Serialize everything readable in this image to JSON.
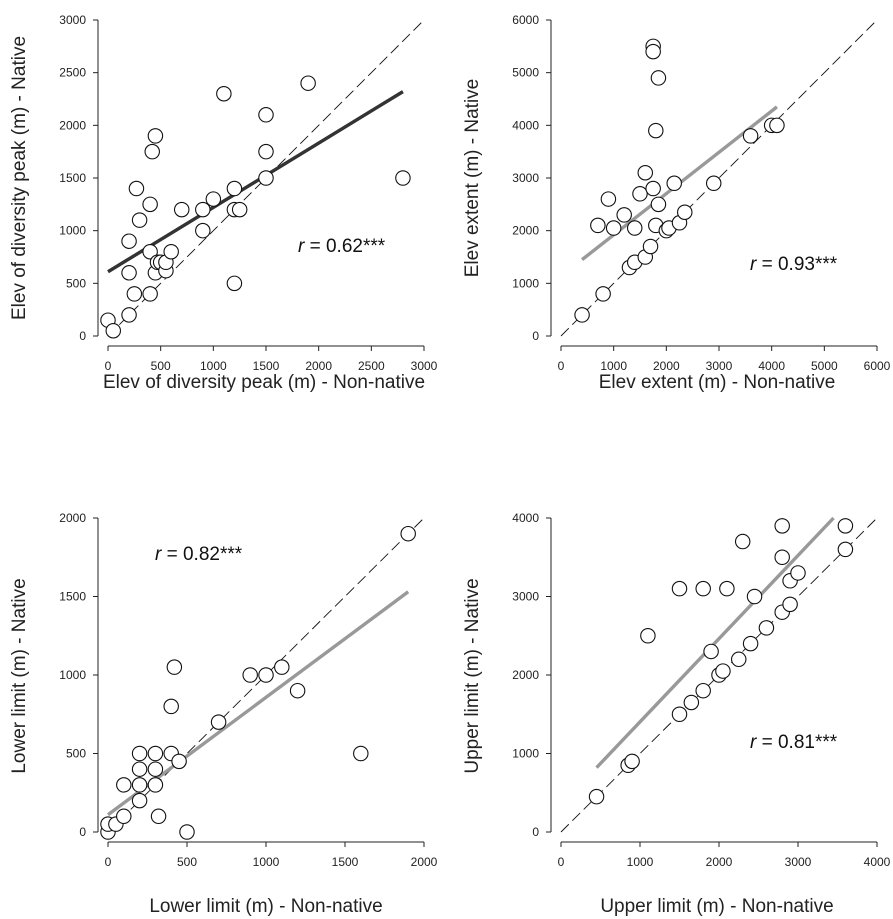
{
  "colors": {
    "fit_dark": "#333333",
    "fit_gray": "#999999",
    "identity": "#111111",
    "marker_edge": "#111111"
  },
  "chart_data": [
    {
      "type": "scatter",
      "xlabel": "Elev of diversity peak (m) - Non-native",
      "ylabel": "Elev of diversity peak (m) - Native",
      "xlim": [
        0,
        3000
      ],
      "ylim": [
        0,
        3000
      ],
      "xticks": [
        "0",
        "500",
        "1000",
        "1500",
        "2000",
        "2500",
        "3000"
      ],
      "yticks": [
        "0",
        "500",
        "1000",
        "1500",
        "2000",
        "2500",
        "3000"
      ],
      "stat_var": "r",
      "stat_value": " = 0.62***",
      "fit_line": {
        "x": [
          0,
          2800
        ],
        "y": [
          610,
          2320
        ],
        "color": "#333333"
      },
      "identity_line": true,
      "points": [
        [
          0,
          150
        ],
        [
          50,
          50
        ],
        [
          200,
          200
        ],
        [
          200,
          600
        ],
        [
          200,
          900
        ],
        [
          250,
          400
        ],
        [
          270,
          1400
        ],
        [
          300,
          1100
        ],
        [
          400,
          400
        ],
        [
          400,
          800
        ],
        [
          400,
          1250
        ],
        [
          420,
          1750
        ],
        [
          450,
          600
        ],
        [
          450,
          1900
        ],
        [
          470,
          700
        ],
        [
          500,
          700
        ],
        [
          550,
          620
        ],
        [
          550,
          700
        ],
        [
          600,
          800
        ],
        [
          700,
          1200
        ],
        [
          900,
          1000
        ],
        [
          900,
          1200
        ],
        [
          1000,
          1300
        ],
        [
          1100,
          2300
        ],
        [
          1200,
          500
        ],
        [
          1200,
          1200
        ],
        [
          1200,
          1400
        ],
        [
          1250,
          1200
        ],
        [
          1500,
          1500
        ],
        [
          1500,
          1750
        ],
        [
          1500,
          2100
        ],
        [
          1900,
          2400
        ],
        [
          2800,
          1500
        ]
      ]
    },
    {
      "type": "scatter",
      "xlabel": "Elev extent (m) - Non-native",
      "ylabel": "Elev extent (m) - Native",
      "xlim": [
        0,
        6000
      ],
      "ylim": [
        0,
        6000
      ],
      "xticks": [
        "0",
        "1000",
        "2000",
        "3000",
        "4000",
        "5000",
        "6000"
      ],
      "yticks": [
        "0",
        "1000",
        "2000",
        "3000",
        "4000",
        "5000",
        "6000"
      ],
      "stat_var": "r",
      "stat_value": " = 0.93***",
      "fit_line": {
        "x": [
          400,
          4100
        ],
        "y": [
          1450,
          4350
        ],
        "color": "#999999"
      },
      "identity_line": true,
      "points": [
        [
          400,
          400
        ],
        [
          700,
          2100
        ],
        [
          800,
          800
        ],
        [
          900,
          2600
        ],
        [
          1000,
          2050
        ],
        [
          1200,
          2300
        ],
        [
          1300,
          1300
        ],
        [
          1400,
          1400
        ],
        [
          1400,
          2050
        ],
        [
          1500,
          2700
        ],
        [
          1600,
          1500
        ],
        [
          1600,
          3100
        ],
        [
          1700,
          1700
        ],
        [
          1750,
          2800
        ],
        [
          1750,
          5500
        ],
        [
          1750,
          5400
        ],
        [
          1800,
          3900
        ],
        [
          1800,
          2100
        ],
        [
          1850,
          4900
        ],
        [
          1850,
          2500
        ],
        [
          2000,
          2000
        ],
        [
          2050,
          2050
        ],
        [
          2150,
          2900
        ],
        [
          2250,
          2150
        ],
        [
          2350,
          2350
        ],
        [
          2900,
          2900
        ],
        [
          3600,
          3800
        ],
        [
          4000,
          4000
        ],
        [
          4100,
          4000
        ]
      ]
    },
    {
      "type": "scatter",
      "xlabel": "Lower limit (m) - Non-native",
      "ylabel": "Lower limit (m) - Native",
      "xlim": [
        0,
        2000
      ],
      "ylim": [
        0,
        2000
      ],
      "xticks": [
        "0",
        "500",
        "1000",
        "1500",
        "2000"
      ],
      "yticks": [
        "0",
        "500",
        "1000",
        "1500",
        "2000"
      ],
      "stat_var": "r",
      "stat_value": " = 0.82***",
      "fit_line": {
        "x": [
          0,
          1900
        ],
        "y": [
          110,
          1530
        ],
        "color": "#999999"
      },
      "identity_line": true,
      "points": [
        [
          0,
          0
        ],
        [
          0,
          50
        ],
        [
          50,
          50
        ],
        [
          100,
          100
        ],
        [
          100,
          300
        ],
        [
          200,
          200
        ],
        [
          200,
          300
        ],
        [
          200,
          400
        ],
        [
          200,
          500
        ],
        [
          300,
          300
        ],
        [
          300,
          400
        ],
        [
          300,
          500
        ],
        [
          320,
          100
        ],
        [
          400,
          500
        ],
        [
          400,
          800
        ],
        [
          420,
          1050
        ],
        [
          450,
          450
        ],
        [
          500,
          0
        ],
        [
          700,
          700
        ],
        [
          900,
          1000
        ],
        [
          1000,
          1000
        ],
        [
          1100,
          1050
        ],
        [
          1200,
          900
        ],
        [
          1600,
          500
        ],
        [
          1900,
          1900
        ]
      ]
    },
    {
      "type": "scatter",
      "xlabel": "Upper limit (m) - Non-native",
      "ylabel": "Upper limit (m) - Native",
      "xlim": [
        0,
        4000
      ],
      "ylim": [
        0,
        4000
      ],
      "xticks": [
        "0",
        "1000",
        "2000",
        "3000",
        "4000"
      ],
      "yticks": [
        "0",
        "1000",
        "2000",
        "3000",
        "4000"
      ],
      "stat_var": "r",
      "stat_value": " = 0.81***",
      "fit_line": {
        "x": [
          450,
          3450
        ],
        "y": [
          820,
          4000
        ],
        "color": "#999999"
      },
      "identity_line": true,
      "points": [
        [
          450,
          450
        ],
        [
          850,
          850
        ],
        [
          900,
          900
        ],
        [
          1100,
          2500
        ],
        [
          1500,
          1500
        ],
        [
          1500,
          3100
        ],
        [
          1650,
          1650
        ],
        [
          1800,
          1800
        ],
        [
          1800,
          3100
        ],
        [
          1900,
          2300
        ],
        [
          2000,
          2000
        ],
        [
          2050,
          2050
        ],
        [
          2100,
          3100
        ],
        [
          2250,
          2200
        ],
        [
          2300,
          3700
        ],
        [
          2400,
          2400
        ],
        [
          2450,
          3000
        ],
        [
          2600,
          2600
        ],
        [
          2800,
          2800
        ],
        [
          2800,
          3500
        ],
        [
          2800,
          3900
        ],
        [
          2900,
          2900
        ],
        [
          2900,
          3200
        ],
        [
          3000,
          3300
        ],
        [
          3600,
          3600
        ],
        [
          3600,
          3900
        ]
      ]
    }
  ]
}
